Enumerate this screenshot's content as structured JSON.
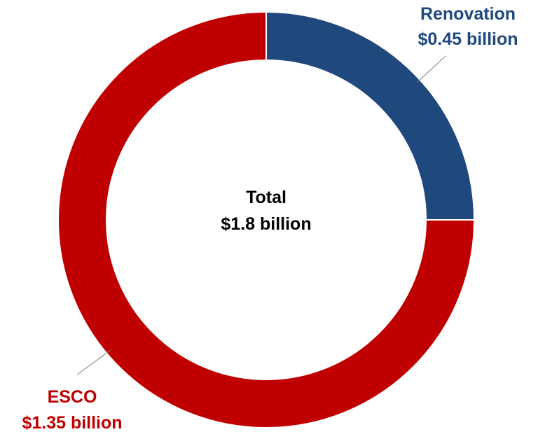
{
  "chart_data": {
    "type": "pie",
    "donut": true,
    "title": "",
    "center_label": {
      "line1": "Total",
      "line2": "$1.8 billion"
    },
    "slices": [
      {
        "name": "Renovation",
        "value": 0.45,
        "value_label": "$0.45 billion",
        "color": "#1f497d"
      },
      {
        "name": "ESCO",
        "value": 1.35,
        "value_label": "$1.35 billion",
        "color": "#c00000"
      }
    ],
    "units": "billion USD",
    "legend": "none"
  }
}
